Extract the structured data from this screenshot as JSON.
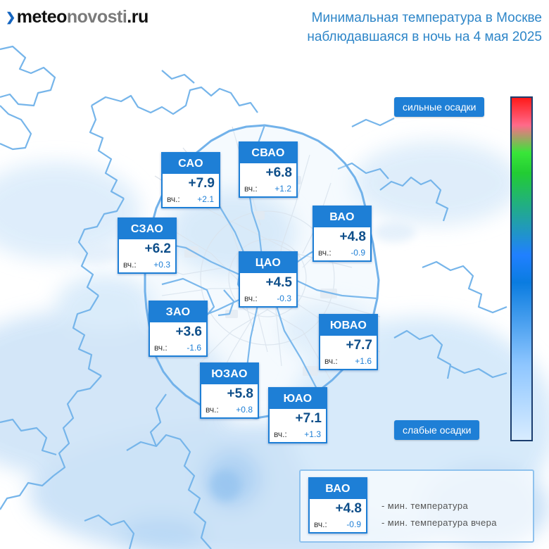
{
  "header": {
    "logo_dark": "meteo",
    "logo_grey": "novosti",
    "logo_tld": ".ru",
    "title_line1": "Минимальная температура в Москве",
    "title_line2": "наблюдавшаяся в ночь на 4 мая 2025"
  },
  "districts": [
    {
      "name": "САО",
      "temp": "+7.9",
      "yday_label": "вч.:",
      "yday": "+2.1"
    },
    {
      "name": "СВАО",
      "temp": "+6.8",
      "yday_label": "вч.:",
      "yday": "+1.2"
    },
    {
      "name": "ВАО",
      "temp": "+4.8",
      "yday_label": "вч.:",
      "yday": "-0.9"
    },
    {
      "name": "СЗАО",
      "temp": "+6.2",
      "yday_label": "вч.:",
      "yday": "+0.3"
    },
    {
      "name": "ЦАО",
      "temp": "+4.5",
      "yday_label": "вч.:",
      "yday": "-0.3"
    },
    {
      "name": "ЗАО",
      "temp": "+3.6",
      "yday_label": "вч.:",
      "yday": "-1.6"
    },
    {
      "name": "ЮВАО",
      "temp": "+7.7",
      "yday_label": "вч.:",
      "yday": "+1.6"
    },
    {
      "name": "ЮЗАО",
      "temp": "+5.8",
      "yday_label": "вч.:",
      "yday": "+0.8"
    },
    {
      "name": "ЮАО",
      "temp": "+7.1",
      "yday_label": "вч.:",
      "yday": "+1.3"
    }
  ],
  "scale": {
    "top_label": "сильные осадки",
    "bottom_label": "слабые осадки",
    "colors": [
      "#ff1a1a",
      "#39e639",
      "#2080ff",
      "#d8ecff"
    ]
  },
  "legend": {
    "sample": {
      "name": "ВАО",
      "temp": "+4.8",
      "yday_label": "вч.:",
      "yday": "-0.9"
    },
    "line1": "- мин. температура",
    "line2": "- мин. температура вчера"
  },
  "colors": {
    "accent": "#1e7fd6",
    "title": "#2e86c8",
    "value": "#0f4f8a",
    "boundary": "#6fb3ea"
  }
}
